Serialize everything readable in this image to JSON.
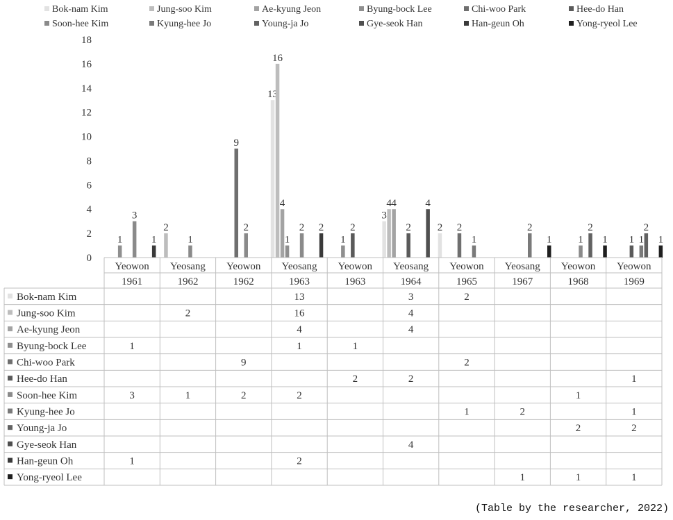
{
  "chart_data": {
    "type": "bar",
    "categories": [
      {
        "place": "Yeowon",
        "year": "1961"
      },
      {
        "place": "Yeosang",
        "year": "1962"
      },
      {
        "place": "Yeowon",
        "year": "1962"
      },
      {
        "place": "Yeosang",
        "year": "1963"
      },
      {
        "place": "Yeowon",
        "year": "1963"
      },
      {
        "place": "Yeosang",
        "year": "1964"
      },
      {
        "place": "Yeowon",
        "year": "1965"
      },
      {
        "place": "Yeosang",
        "year": "1967"
      },
      {
        "place": "Yeowon",
        "year": "1968"
      },
      {
        "place": "Yeowon",
        "year": "1969"
      }
    ],
    "series": [
      {
        "name": "Bok-nam Kim",
        "color": "#e2e2e2",
        "values": [
          null,
          null,
          null,
          13,
          null,
          3,
          2,
          null,
          null,
          null
        ]
      },
      {
        "name": "Jung-soo Kim",
        "color": "#bdbdbd",
        "values": [
          null,
          2,
          null,
          16,
          null,
          4,
          null,
          null,
          null,
          null
        ]
      },
      {
        "name": "Ae-kyung Jeon",
        "color": "#a3a3a3",
        "values": [
          null,
          null,
          null,
          4,
          null,
          4,
          null,
          null,
          null,
          null
        ]
      },
      {
        "name": "Byung-bock Lee",
        "color": "#8f8f8f",
        "values": [
          1,
          null,
          null,
          1,
          1,
          null,
          null,
          null,
          null,
          null
        ]
      },
      {
        "name": "Chi-woo Park",
        "color": "#6f6f6f",
        "values": [
          null,
          null,
          9,
          null,
          null,
          null,
          2,
          null,
          null,
          null
        ]
      },
      {
        "name": "Hee-do Han",
        "color": "#5a5a5a",
        "values": [
          null,
          null,
          null,
          null,
          2,
          2,
          null,
          null,
          null,
          1
        ]
      },
      {
        "name": "Soon-hee Kim",
        "color": "#8a8a8a",
        "values": [
          3,
          1,
          2,
          2,
          null,
          null,
          null,
          null,
          1,
          null
        ]
      },
      {
        "name": "Kyung-hee Jo",
        "color": "#7a7a7a",
        "values": [
          null,
          null,
          null,
          null,
          null,
          null,
          1,
          2,
          null,
          1
        ]
      },
      {
        "name": "Young-ja Jo",
        "color": "#626262",
        "values": [
          null,
          null,
          null,
          null,
          null,
          null,
          null,
          null,
          2,
          2
        ]
      },
      {
        "name": "Gye-seok Han",
        "color": "#4f4f4f",
        "values": [
          null,
          null,
          null,
          null,
          null,
          4,
          null,
          null,
          null,
          null
        ]
      },
      {
        "name": "Han-geun Oh",
        "color": "#3a3a3a",
        "values": [
          1,
          null,
          null,
          2,
          null,
          null,
          null,
          null,
          null,
          null
        ]
      },
      {
        "name": "Yong-ryeol Lee",
        "color": "#1f1f1f",
        "values": [
          null,
          null,
          null,
          null,
          null,
          null,
          null,
          1,
          1,
          1
        ]
      }
    ],
    "ylim": [
      0,
      18
    ],
    "yticks": [
      "0",
      "2",
      "4",
      "6",
      "8",
      "10",
      "12",
      "14",
      "16",
      "18"
    ],
    "legend": "top",
    "grid": false,
    "data_table": true
  },
  "source_note": "(Table by the researcher, 2022)"
}
